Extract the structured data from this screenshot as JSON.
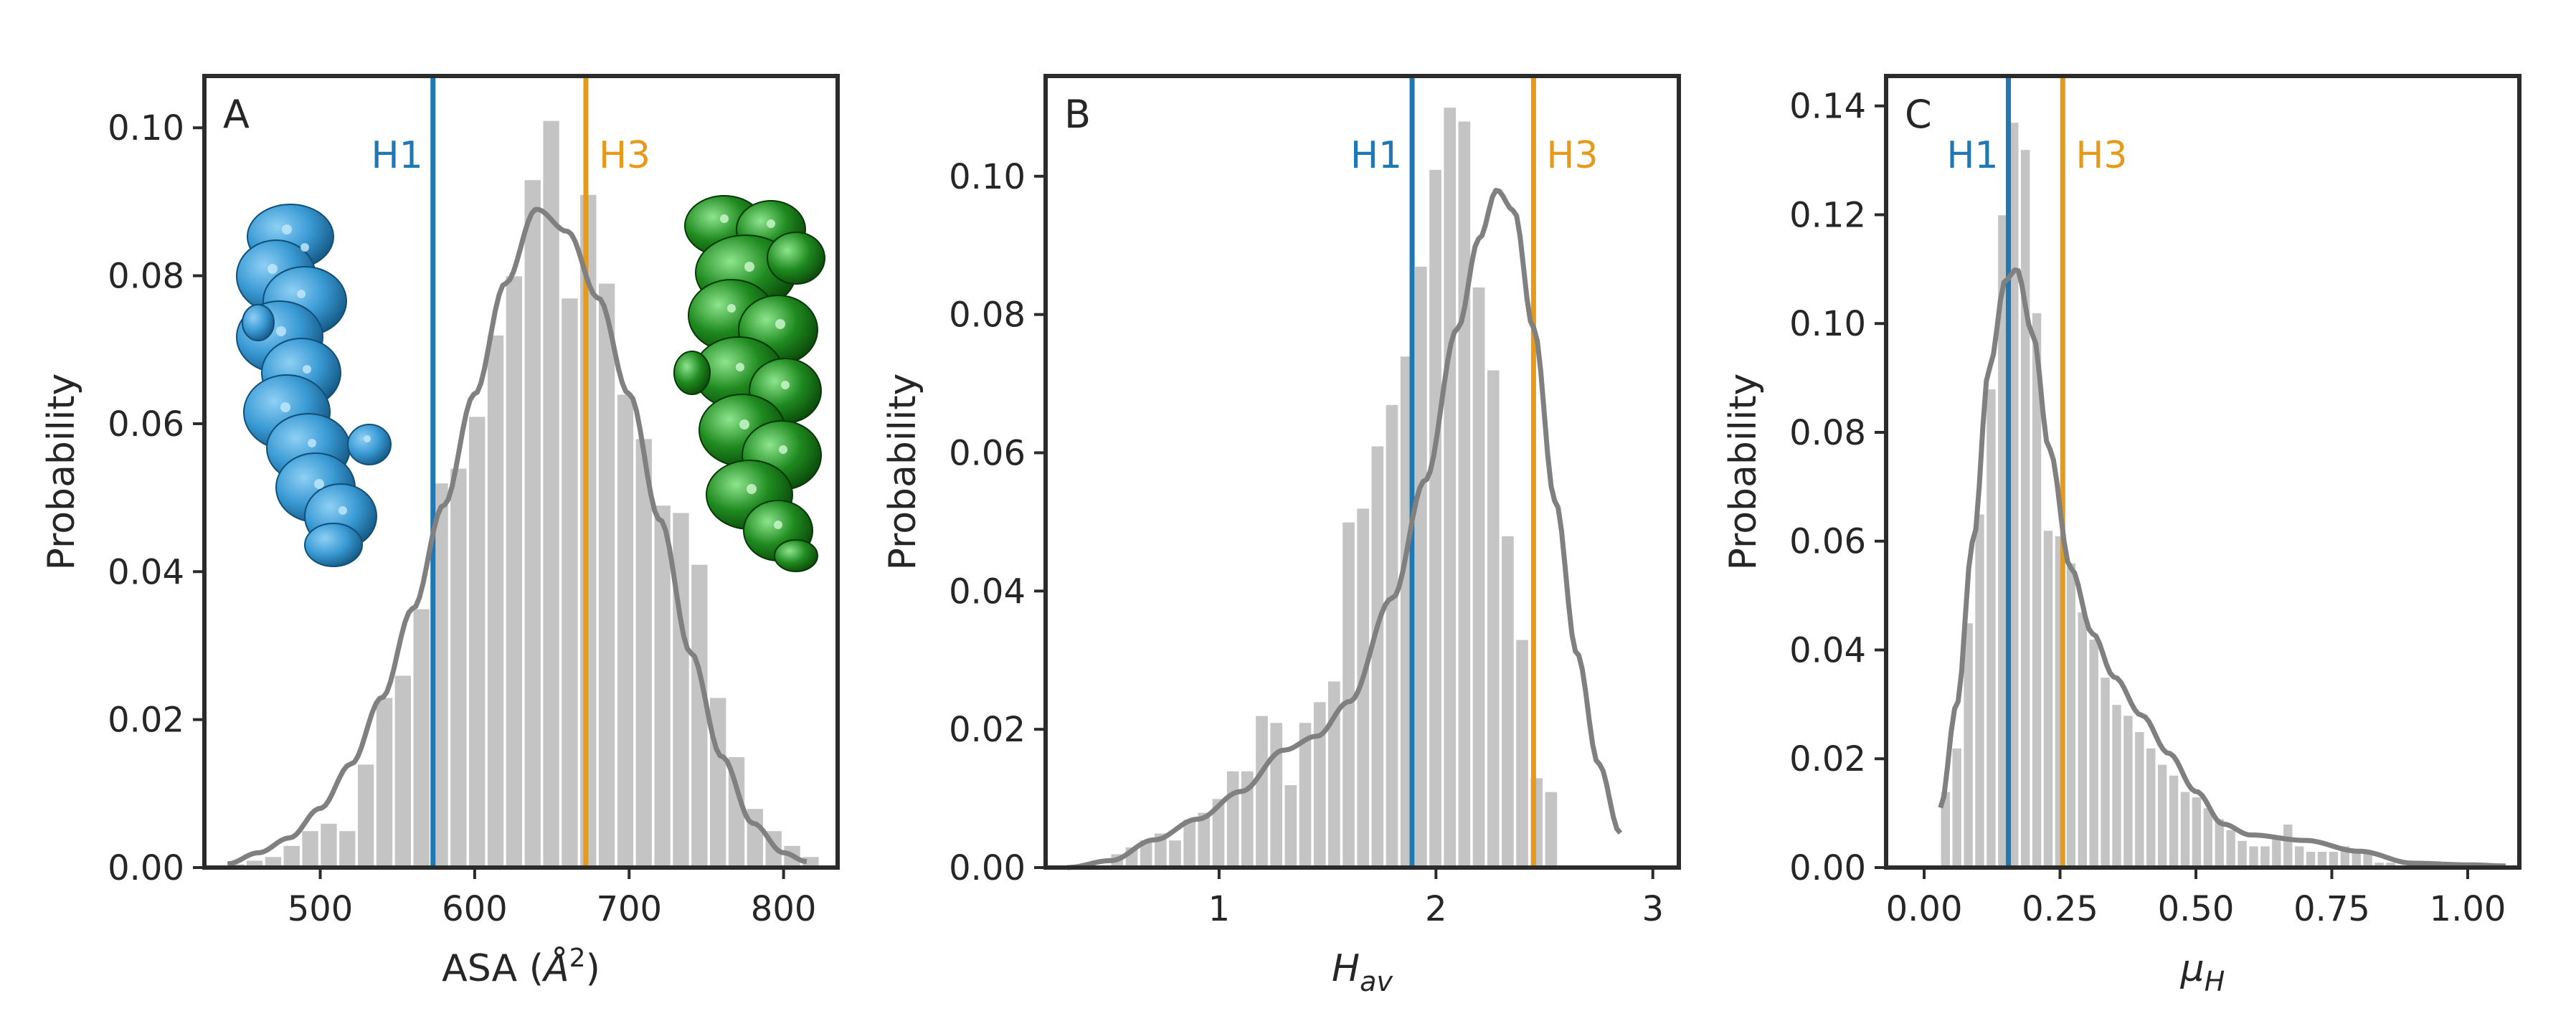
{
  "colors": {
    "bar": "#c4c4c4",
    "kde": "#808080",
    "h1": "#1f77b4",
    "h3": "#e69a1a",
    "frame": "#2b2b2b",
    "peptide_blue": "#3a9ad4",
    "peptide_green": "#1f8a1f"
  },
  "chart_data": [
    {
      "type": "bar",
      "panel": "A",
      "xlabel_text": "ASA (",
      "xlabel_unit_A": "Å",
      "xlabel_unit_exp": "2",
      "xlabel_close": ")",
      "ylabel": "Probability",
      "xlim": [
        425,
        835
      ],
      "ylim": [
        0,
        0.107
      ],
      "xticks": [
        500,
        600,
        700,
        800
      ],
      "yticks": [
        0.0,
        0.02,
        0.04,
        0.06,
        0.08,
        0.1
      ],
      "ytick_labels": [
        "0.00",
        "0.02",
        "0.04",
        "0.06",
        "0.08",
        "0.10"
      ],
      "bin_start": 440,
      "bin_width": 12,
      "values": [
        0.0005,
        0.001,
        0.0015,
        0.003,
        0.005,
        0.006,
        0.005,
        0.014,
        0.023,
        0.026,
        0.035,
        0.052,
        0.054,
        0.061,
        0.072,
        0.08,
        0.093,
        0.101,
        0.077,
        0.091,
        0.079,
        0.064,
        0.058,
        0.049,
        0.048,
        0.041,
        0.023,
        0.015,
        0.008,
        0.005,
        0.003,
        0.0015
      ],
      "kde_x": [
        440,
        460,
        480,
        500,
        520,
        540,
        560,
        580,
        600,
        620,
        640,
        660,
        680,
        700,
        720,
        740,
        760,
        780,
        800,
        815
      ],
      "kde_y": [
        0.0005,
        0.002,
        0.004,
        0.008,
        0.014,
        0.023,
        0.035,
        0.049,
        0.064,
        0.079,
        0.089,
        0.086,
        0.077,
        0.064,
        0.047,
        0.029,
        0.015,
        0.006,
        0.002,
        0.0008
      ],
      "kde_range": [
        440,
        815
      ],
      "vlines": [
        {
          "name": "H1",
          "x": 573,
          "color_key": "h1"
        },
        {
          "name": "H3",
          "x": 672,
          "color_key": "h3"
        }
      ]
    },
    {
      "type": "bar",
      "panel": "B",
      "xlabel_main": "H",
      "xlabel_sub": "av",
      "ylabel": "Probability",
      "xlim": [
        0.2,
        3.12
      ],
      "ylim": [
        0,
        0.1145
      ],
      "xticks": [
        1,
        2,
        3
      ],
      "yticks": [
        0.0,
        0.02,
        0.04,
        0.06,
        0.08,
        0.1
      ],
      "ytick_labels": [
        "0.00",
        "0.02",
        "0.04",
        "0.06",
        "0.08",
        "0.10"
      ],
      "bin_start": 0.5,
      "bin_width": 0.0667,
      "values": [
        0.002,
        0.003,
        0.004,
        0.005,
        0.004,
        0.007,
        0.008,
        0.01,
        0.014,
        0.014,
        0.022,
        0.021,
        0.012,
        0.021,
        0.024,
        0.027,
        0.05,
        0.052,
        0.061,
        0.067,
        0.074,
        0.087,
        0.101,
        0.11,
        0.108,
        0.084,
        0.072,
        0.048,
        0.033,
        0.013,
        0.011
      ],
      "kde_x": [
        0.3,
        0.5,
        0.7,
        0.9,
        1.1,
        1.3,
        1.45,
        1.6,
        1.8,
        1.95,
        2.1,
        2.2,
        2.28,
        2.36,
        2.45,
        2.55,
        2.65,
        2.75,
        2.85
      ],
      "kde_y": [
        0.0,
        0.001,
        0.004,
        0.007,
        0.011,
        0.017,
        0.019,
        0.024,
        0.039,
        0.056,
        0.078,
        0.091,
        0.098,
        0.095,
        0.078,
        0.053,
        0.031,
        0.015,
        0.005
      ],
      "kde_range": [
        0.3,
        2.85
      ],
      "vlines": [
        {
          "name": "H1",
          "x": 1.89,
          "color_key": "h1"
        },
        {
          "name": "H3",
          "x": 2.45,
          "color_key": "h3"
        }
      ]
    },
    {
      "type": "bar",
      "panel": "C",
      "xlabel_main": "μ",
      "xlabel_sub": "H",
      "ylabel": "Probability",
      "xlim": [
        -0.07,
        1.095
      ],
      "ylim": [
        0,
        0.1455
      ],
      "xticks": [
        0.0,
        0.25,
        0.5,
        0.75,
        1.0
      ],
      "xtick_labels": [
        "0.00",
        "0.25",
        "0.50",
        "0.75",
        "1.00"
      ],
      "yticks": [
        0.0,
        0.02,
        0.04,
        0.06,
        0.08,
        0.1,
        0.12,
        0.14
      ],
      "ytick_labels": [
        "0.00",
        "0.02",
        "0.04",
        "0.06",
        "0.08",
        "0.10",
        "0.12",
        "0.14"
      ],
      "bin_start": 0.03,
      "bin_width": 0.021,
      "values": [
        0.014,
        0.022,
        0.045,
        0.065,
        0.088,
        0.12,
        0.137,
        0.132,
        0.102,
        0.062,
        0.061,
        0.056,
        0.047,
        0.042,
        0.035,
        0.03,
        0.028,
        0.025,
        0.022,
        0.019,
        0.017,
        0.014,
        0.013,
        0.011,
        0.009,
        0.007,
        0.005,
        0.004,
        0.004,
        0.006,
        0.008,
        0.004,
        0.003,
        0.003,
        0.003,
        0.004,
        0.003,
        0.003,
        0.001,
        0.001
      ],
      "kde_x": [
        0.03,
        0.06,
        0.09,
        0.12,
        0.15,
        0.17,
        0.2,
        0.23,
        0.27,
        0.31,
        0.35,
        0.4,
        0.45,
        0.5,
        0.55,
        0.6,
        0.7,
        0.8,
        0.9,
        1.0,
        1.07
      ],
      "kde_y": [
        0.011,
        0.03,
        0.06,
        0.092,
        0.108,
        0.11,
        0.098,
        0.077,
        0.055,
        0.043,
        0.035,
        0.028,
        0.021,
        0.014,
        0.008,
        0.006,
        0.005,
        0.003,
        0.0008,
        0.0005,
        0.0003
      ],
      "kde_range": [
        0.03,
        1.07
      ],
      "vlines": [
        {
          "name": "H1",
          "x": 0.155,
          "color_key": "h1"
        },
        {
          "name": "H3",
          "x": 0.255,
          "color_key": "h3"
        }
      ]
    }
  ]
}
